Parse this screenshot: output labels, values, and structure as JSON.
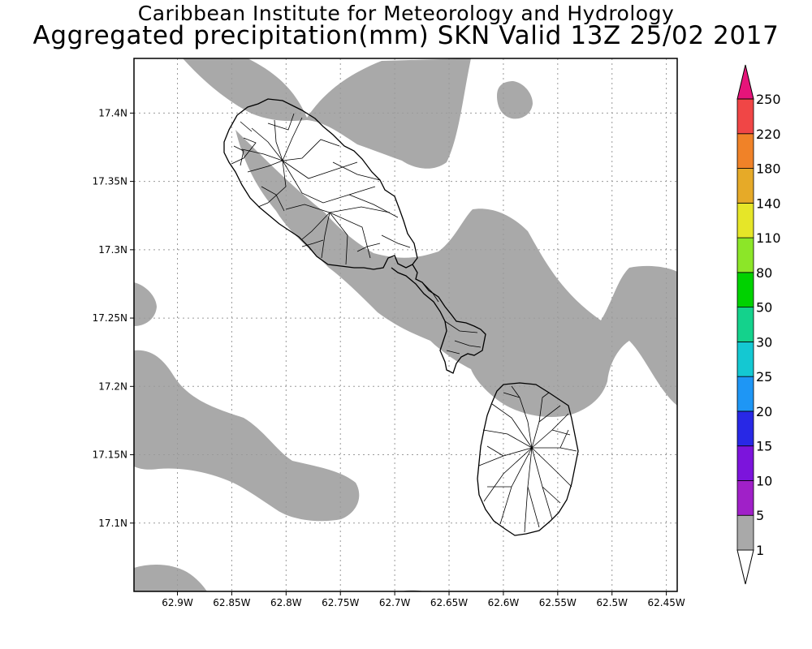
{
  "title": {
    "line1": "Caribbean Institute for Meteorology and Hydrology",
    "line2": "Aggregated precipitation(mm) SKN Valid 13Z 25/02 2017"
  },
  "map": {
    "lon_range": [
      -62.94,
      -62.44
    ],
    "lat_range": [
      17.05,
      17.44
    ],
    "lon_ticks": [
      {
        "v": -62.9,
        "label": "62.9W"
      },
      {
        "v": -62.85,
        "label": "62.85W"
      },
      {
        "v": -62.8,
        "label": "62.8W"
      },
      {
        "v": -62.75,
        "label": "62.75W"
      },
      {
        "v": -62.7,
        "label": "62.7W"
      },
      {
        "v": -62.65,
        "label": "62.65W"
      },
      {
        "v": -62.6,
        "label": "62.6W"
      },
      {
        "v": -62.55,
        "label": "62.55W"
      },
      {
        "v": -62.5,
        "label": "62.5W"
      },
      {
        "v": -62.45,
        "label": "62.45W"
      }
    ],
    "lat_ticks": [
      {
        "v": 17.4,
        "label": "17.4N"
      },
      {
        "v": 17.35,
        "label": "17.35N"
      },
      {
        "v": 17.3,
        "label": "17.3N"
      },
      {
        "v": 17.25,
        "label": "17.25N"
      },
      {
        "v": 17.2,
        "label": "17.2N"
      },
      {
        "v": 17.15,
        "label": "17.15N"
      },
      {
        "v": 17.1,
        "label": "17.1N"
      }
    ],
    "grid": true,
    "shade_color": "#a9a9a9",
    "islands": [
      "St. Kitts",
      "Nevis"
    ]
  },
  "colorbar": {
    "levels": [
      "1",
      "5",
      "10",
      "15",
      "20",
      "25",
      "30",
      "50",
      "80",
      "110",
      "140",
      "180",
      "220",
      "250"
    ],
    "colors": [
      "#a9a9a9",
      "#a020c8",
      "#7c14dc",
      "#2828e6",
      "#1e96f5",
      "#14c8d2",
      "#14d28c",
      "#00d200",
      "#8ce628",
      "#e6e628",
      "#e6aa28",
      "#f08228",
      "#f04646",
      "#e6147a"
    ]
  }
}
